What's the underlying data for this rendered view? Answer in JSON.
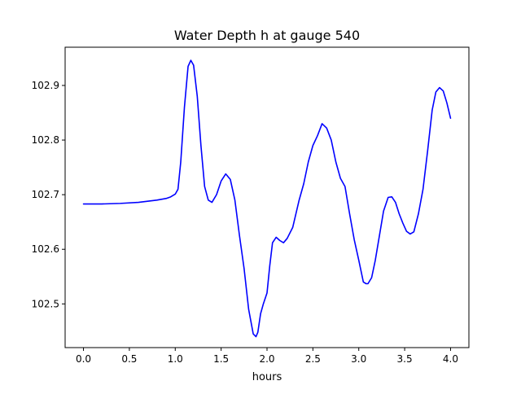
{
  "chart_data": {
    "type": "line",
    "title": "Water Depth h at gauge 540",
    "xlabel": "hours",
    "ylabel": "",
    "xlim": [
      -0.2,
      4.2
    ],
    "ylim": [
      102.42,
      102.97
    ],
    "grid": false,
    "xticks": [
      0.0,
      0.5,
      1.0,
      1.5,
      2.0,
      2.5,
      3.0,
      3.5,
      4.0
    ],
    "xtick_labels": [
      "0.0",
      "0.5",
      "1.0",
      "1.5",
      "2.0",
      "2.5",
      "3.0",
      "3.5",
      "4.0"
    ],
    "yticks": [
      102.5,
      102.6,
      102.7,
      102.8,
      102.9
    ],
    "ytick_labels": [
      "102.5",
      "102.6",
      "102.7",
      "102.8",
      "102.9"
    ],
    "series": [
      {
        "color": "#0000ff",
        "x": [
          0.0,
          0.2,
          0.4,
          0.6,
          0.7,
          0.8,
          0.9,
          0.95,
          1.0,
          1.03,
          1.06,
          1.1,
          1.14,
          1.17,
          1.2,
          1.24,
          1.28,
          1.32,
          1.36,
          1.4,
          1.45,
          1.5,
          1.55,
          1.6,
          1.65,
          1.7,
          1.75,
          1.8,
          1.85,
          1.88,
          1.9,
          1.93,
          1.96,
          2.0,
          2.03,
          2.06,
          2.1,
          2.14,
          2.18,
          2.22,
          2.28,
          2.35,
          2.4,
          2.45,
          2.5,
          2.55,
          2.6,
          2.65,
          2.7,
          2.75,
          2.8,
          2.85,
          2.9,
          2.95,
          3.0,
          3.05,
          3.08,
          3.1,
          3.14,
          3.18,
          3.22,
          3.27,
          3.32,
          3.36,
          3.4,
          3.44,
          3.48,
          3.52,
          3.56,
          3.6,
          3.65,
          3.7,
          3.75,
          3.8,
          3.84,
          3.88,
          3.92,
          3.96,
          4.0
        ],
        "y": [
          102.683,
          102.683,
          102.684,
          102.686,
          102.688,
          102.69,
          102.693,
          102.696,
          102.701,
          102.71,
          102.76,
          102.86,
          102.935,
          102.946,
          102.937,
          102.88,
          102.79,
          102.715,
          102.69,
          102.686,
          102.7,
          102.725,
          102.738,
          102.728,
          102.69,
          102.625,
          102.565,
          102.49,
          102.445,
          102.44,
          102.448,
          102.482,
          102.5,
          102.52,
          102.57,
          102.612,
          102.622,
          102.616,
          102.612,
          102.62,
          102.64,
          102.69,
          102.72,
          102.76,
          102.79,
          102.808,
          102.83,
          102.822,
          102.8,
          102.76,
          102.73,
          102.715,
          102.665,
          102.618,
          102.58,
          102.54,
          102.537,
          102.537,
          102.548,
          102.58,
          102.62,
          102.67,
          102.695,
          102.696,
          102.686,
          102.665,
          102.648,
          102.633,
          102.628,
          102.632,
          102.665,
          102.71,
          102.78,
          102.855,
          102.888,
          102.896,
          102.89,
          102.868,
          102.84
        ]
      }
    ]
  }
}
